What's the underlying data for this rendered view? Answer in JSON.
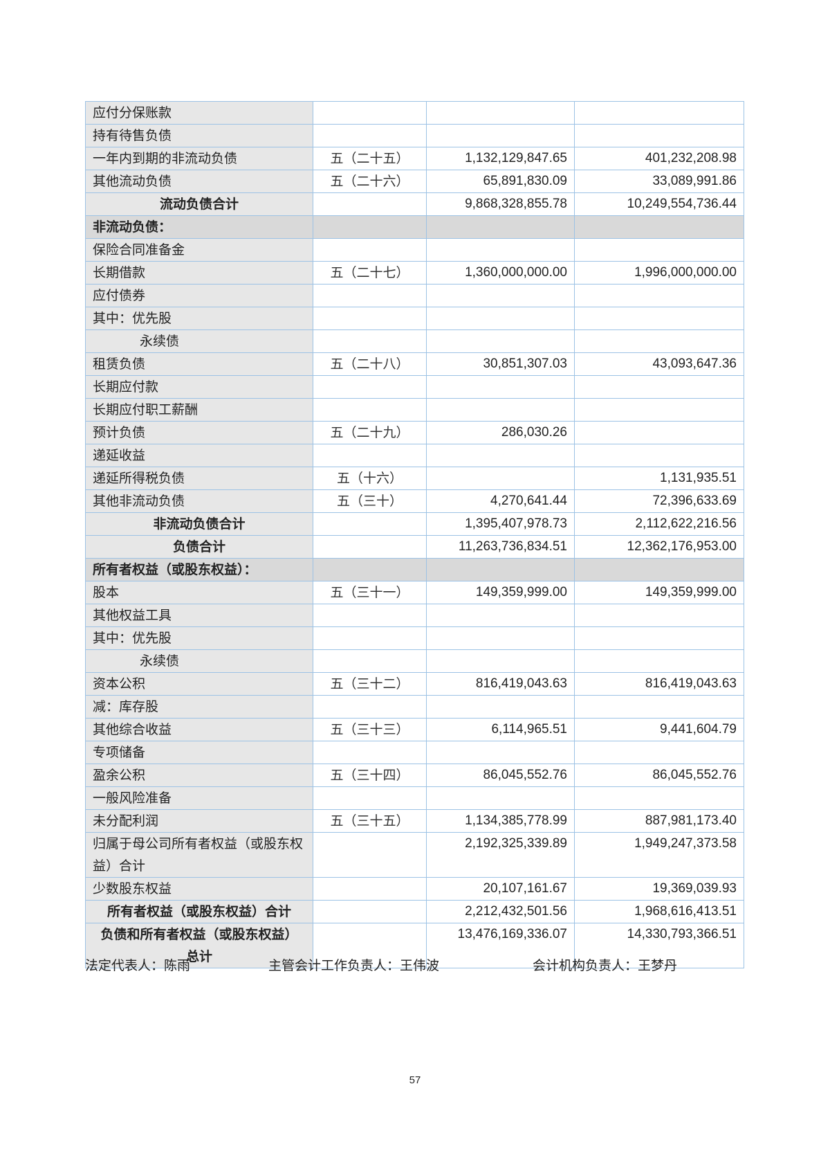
{
  "rows": [
    {
      "item": "应付分保账款",
      "note": "",
      "current": "",
      "previous": ""
    },
    {
      "item": "持有待售负债",
      "note": "",
      "current": "",
      "previous": ""
    },
    {
      "item": "一年内到期的非流动负债",
      "note": "五（二十五）",
      "current": "1,132,129,847.65",
      "previous": "401,232,208.98"
    },
    {
      "item": "其他流动负债",
      "note": "五（二十六）",
      "current": "65,891,830.09",
      "previous": "33,089,991.86"
    },
    {
      "item": "流动负债合计",
      "note": "",
      "current": "9,868,328,855.78",
      "previous": "10,249,554,736.44",
      "type": "total"
    },
    {
      "item": "非流动负债：",
      "note": "",
      "current": "",
      "previous": "",
      "type": "section"
    },
    {
      "item": "保险合同准备金",
      "note": "",
      "current": "",
      "previous": ""
    },
    {
      "item": "长期借款",
      "note": "五（二十七）",
      "current": "1,360,000,000.00",
      "previous": "1,996,000,000.00"
    },
    {
      "item": "应付债券",
      "note": "",
      "current": "",
      "previous": ""
    },
    {
      "item": "其中：优先股",
      "note": "",
      "current": "",
      "previous": ""
    },
    {
      "item": "永续债",
      "note": "",
      "current": "",
      "previous": "",
      "type": "indent"
    },
    {
      "item": "租赁负债",
      "note": "五（二十八）",
      "current": "30,851,307.03",
      "previous": "43,093,647.36"
    },
    {
      "item": "长期应付款",
      "note": "",
      "current": "",
      "previous": ""
    },
    {
      "item": "长期应付职工薪酬",
      "note": "",
      "current": "",
      "previous": ""
    },
    {
      "item": "预计负债",
      "note": "五（二十九）",
      "current": "286,030.26",
      "previous": ""
    },
    {
      "item": "递延收益",
      "note": "",
      "current": "",
      "previous": ""
    },
    {
      "item": "递延所得税负债",
      "note": "五（十六）",
      "current": "",
      "previous": "1,131,935.51"
    },
    {
      "item": "其他非流动负债",
      "note": "五（三十）",
      "current": "4,270,641.44",
      "previous": "72,396,633.69"
    },
    {
      "item": "非流动负债合计",
      "note": "",
      "current": "1,395,407,978.73",
      "previous": "2,112,622,216.56",
      "type": "total"
    },
    {
      "item": "负债合计",
      "note": "",
      "current": "11,263,736,834.51",
      "previous": "12,362,176,953.00",
      "type": "total"
    },
    {
      "item": "所有者权益（或股东权益）：",
      "note": "",
      "current": "",
      "previous": "",
      "type": "section"
    },
    {
      "item": "股本",
      "note": "五（三十一）",
      "current": "149,359,999.00",
      "previous": "149,359,999.00"
    },
    {
      "item": "其他权益工具",
      "note": "",
      "current": "",
      "previous": ""
    },
    {
      "item": "其中：优先股",
      "note": "",
      "current": "",
      "previous": ""
    },
    {
      "item": "永续债",
      "note": "",
      "current": "",
      "previous": "",
      "type": "indent"
    },
    {
      "item": "资本公积",
      "note": "五（三十二）",
      "current": "816,419,043.63",
      "previous": "816,419,043.63"
    },
    {
      "item": "减：库存股",
      "note": "",
      "current": "",
      "previous": ""
    },
    {
      "item": "其他综合收益",
      "note": "五（三十三）",
      "current": "6,114,965.51",
      "previous": "9,441,604.79"
    },
    {
      "item": "专项储备",
      "note": "",
      "current": "",
      "previous": ""
    },
    {
      "item": "盈余公积",
      "note": "五（三十四）",
      "current": "86,045,552.76",
      "previous": "86,045,552.76"
    },
    {
      "item": "一般风险准备",
      "note": "",
      "current": "",
      "previous": ""
    },
    {
      "item": "未分配利润",
      "note": "五（三十五）",
      "current": "1,134,385,778.99",
      "previous": "887,981,173.40"
    },
    {
      "item": "归属于母公司所有者权益（或股东权益）合计",
      "note": "",
      "current": "2,192,325,339.89",
      "previous": "1,949,247,373.58",
      "type": "wrap"
    },
    {
      "item": "少数股东权益",
      "note": "",
      "current": "20,107,161.67",
      "previous": "19,369,039.93"
    },
    {
      "item": "所有者权益（或股东权益）合计",
      "note": "",
      "current": "2,212,432,501.56",
      "previous": "1,968,616,413.51",
      "type": "total"
    },
    {
      "item": "负债和所有者权益（或股东权益）总计",
      "note": "",
      "current": "13,476,169,336.07",
      "previous": "14,330,793,366.51",
      "type": "total-wrap"
    }
  ],
  "footer": {
    "legal_rep": "法定代表人：陈雨",
    "accounting_head": "主管会计工作负责人：王伟波",
    "accounting_dept_head": "会计机构负责人：王梦丹"
  },
  "page_number": "57"
}
